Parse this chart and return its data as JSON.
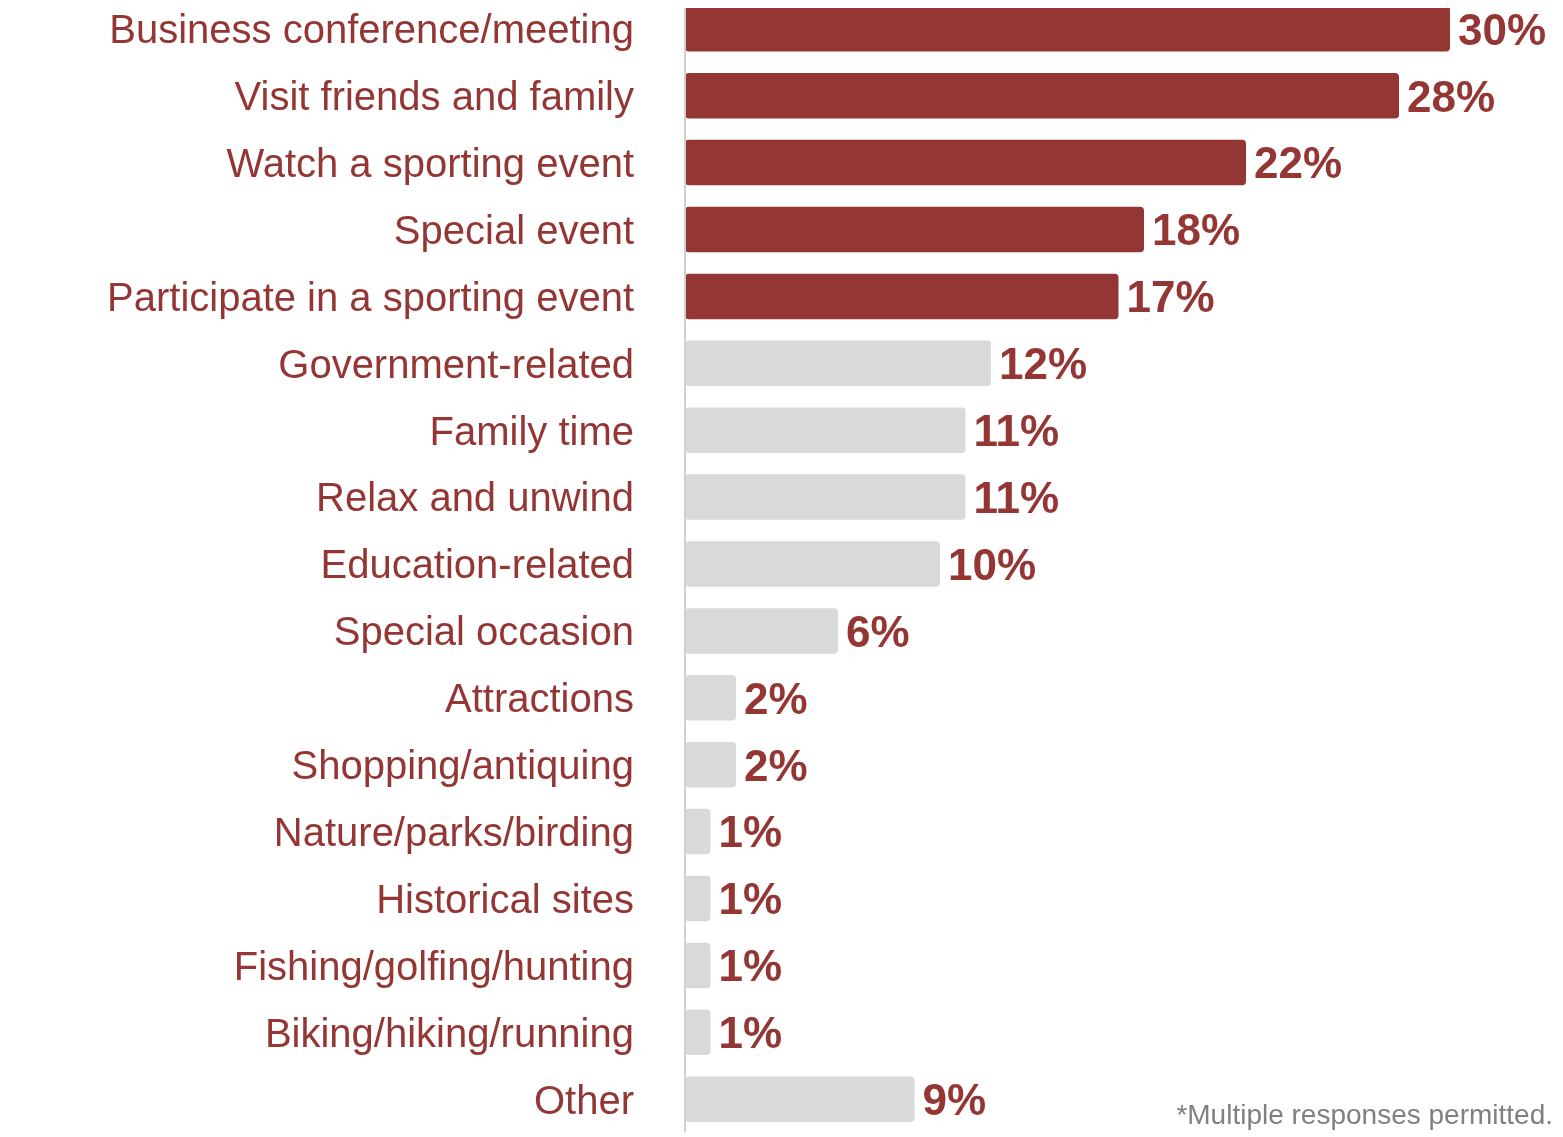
{
  "chart_data": {
    "type": "bar",
    "orientation": "horizontal",
    "categories": [
      "Business conference/meeting",
      "Visit friends and family",
      "Watch a sporting event",
      "Special event",
      "Participate in a sporting event",
      "Government-related",
      "Family time",
      "Relax and unwind",
      "Education-related",
      "Special occasion",
      "Attractions",
      "Shopping/antiquing",
      "Nature/parks/birding",
      "Historical sites",
      "Fishing/golfing/hunting",
      "Biking/hiking/running",
      "Other"
    ],
    "values": [
      30,
      28,
      22,
      18,
      17,
      12,
      11,
      11,
      10,
      6,
      2,
      2,
      1,
      1,
      1,
      1,
      9
    ],
    "value_labels": [
      "30%",
      "28%",
      "22%",
      "18%",
      "17%",
      "12%",
      "11%",
      "11%",
      "10%",
      "6%",
      "2%",
      "2%",
      "1%",
      "1%",
      "1%",
      "1%",
      "9%"
    ],
    "colors": [
      "#943634",
      "#943634",
      "#943634",
      "#943634",
      "#943634",
      "#d9d9d9",
      "#d9d9d9",
      "#d9d9d9",
      "#d9d9d9",
      "#d9d9d9",
      "#d9d9d9",
      "#d9d9d9",
      "#d9d9d9",
      "#d9d9d9",
      "#d9d9d9",
      "#d9d9d9",
      "#d9d9d9"
    ],
    "annotations": [
      "*Multiple responses permitted."
    ]
  }
}
